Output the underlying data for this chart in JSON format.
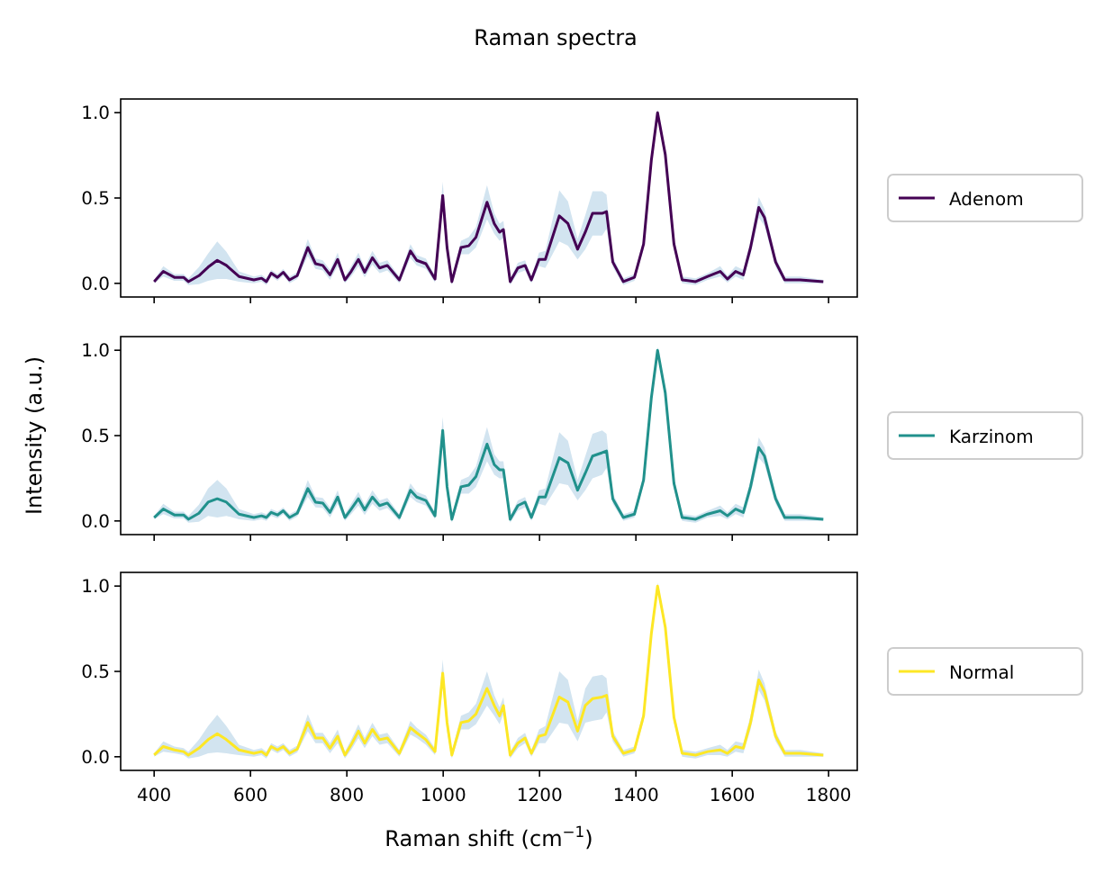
{
  "chart_data": [
    {
      "type": "line",
      "title": "Raman spectra",
      "legend": "right",
      "tick_labels": "y",
      "xlim": [
        330.5,
        1859.5
      ],
      "ylim": [
        -0.08,
        1.08
      ],
      "yticks": [
        {
          "value": 0,
          "label": "0.0"
        },
        {
          "value": 0.5,
          "label": "0.5"
        },
        {
          "value": 1,
          "label": "1.0"
        }
      ],
      "xticks": [
        400,
        600,
        800,
        1000,
        1200,
        1400,
        1600,
        1800
      ],
      "x": [
        400,
        419,
        442,
        461,
        471,
        493,
        512,
        531,
        550,
        576,
        607,
        623,
        633,
        643,
        656,
        668,
        681,
        697,
        719,
        735,
        750,
        765,
        781,
        796,
        809,
        824,
        837,
        853,
        868,
        884,
        909,
        932,
        945,
        964,
        983,
        999,
        1008,
        1018,
        1027,
        1037,
        1053,
        1068,
        1091,
        1106,
        1117,
        1125,
        1139,
        1155,
        1170,
        1183,
        1199,
        1212,
        1241,
        1259,
        1279,
        1295,
        1310,
        1330,
        1339,
        1352,
        1374,
        1397,
        1416,
        1432,
        1445,
        1461,
        1479,
        1496,
        1524,
        1549,
        1575,
        1590,
        1607,
        1623,
        1638,
        1655,
        1667,
        1690,
        1709,
        1741,
        1789
      ],
      "series": [
        {
          "name": "Adenom",
          "color": "#440154",
          "values": [
            0.01,
            0.07,
            0.035,
            0.035,
            0.01,
            0.045,
            0.095,
            0.135,
            0.105,
            0.04,
            0.02,
            0.03,
            0.01,
            0.06,
            0.035,
            0.065,
            0.02,
            0.045,
            0.21,
            0.115,
            0.105,
            0.05,
            0.14,
            0.02,
            0.07,
            0.14,
            0.065,
            0.15,
            0.09,
            0.105,
            0.02,
            0.19,
            0.135,
            0.115,
            0.025,
            0.515,
            0.21,
            0.01,
            0.105,
            0.21,
            0.22,
            0.27,
            0.475,
            0.35,
            0.3,
            0.315,
            0.01,
            0.09,
            0.105,
            0.02,
            0.14,
            0.14,
            0.395,
            0.35,
            0.2,
            0.3,
            0.41,
            0.41,
            0.42,
            0.125,
            0.01,
            0.035,
            0.23,
            0.72,
            1.0,
            0.755,
            0.23,
            0.02,
            0.01,
            0.04,
            0.07,
            0.025,
            0.07,
            0.05,
            0.21,
            0.445,
            0.385,
            0.125,
            0.02,
            0.02,
            0.01
          ],
          "lower": [
            0.0,
            0.04,
            0.015,
            0.015,
            -0.01,
            -0.005,
            0.015,
            0.025,
            0.025,
            0.01,
            0.0,
            0.01,
            -0.01,
            0.04,
            0.015,
            0.045,
            0.0,
            0.025,
            0.16,
            0.085,
            0.075,
            0.02,
            0.1,
            0.0,
            0.04,
            0.1,
            0.035,
            0.11,
            0.06,
            0.075,
            0.0,
            0.15,
            0.105,
            0.085,
            0.005,
            0.435,
            0.16,
            -0.01,
            0.075,
            0.17,
            0.17,
            0.21,
            0.375,
            0.29,
            0.25,
            0.265,
            -0.01,
            0.06,
            0.075,
            0.0,
            0.1,
            0.09,
            0.245,
            0.22,
            0.14,
            0.2,
            0.28,
            0.28,
            0.32,
            0.095,
            -0.01,
            0.015,
            0.2,
            0.69,
            0.98,
            0.725,
            0.2,
            0.0,
            -0.01,
            0.02,
            0.04,
            0.005,
            0.04,
            0.02,
            0.17,
            0.385,
            0.335,
            0.095,
            0.0,
            0.0,
            0.0
          ],
          "upper": [
            0.02,
            0.1,
            0.055,
            0.055,
            0.03,
            0.095,
            0.175,
            0.245,
            0.185,
            0.07,
            0.04,
            0.05,
            0.03,
            0.08,
            0.055,
            0.085,
            0.04,
            0.065,
            0.26,
            0.145,
            0.135,
            0.08,
            0.18,
            0.04,
            0.1,
            0.18,
            0.095,
            0.19,
            0.12,
            0.135,
            0.04,
            0.23,
            0.165,
            0.145,
            0.045,
            0.595,
            0.26,
            0.03,
            0.135,
            0.25,
            0.27,
            0.33,
            0.575,
            0.41,
            0.35,
            0.365,
            0.03,
            0.12,
            0.135,
            0.04,
            0.18,
            0.19,
            0.545,
            0.48,
            0.26,
            0.4,
            0.54,
            0.54,
            0.52,
            0.155,
            0.03,
            0.055,
            0.26,
            0.75,
            1.02,
            0.785,
            0.26,
            0.04,
            0.03,
            0.06,
            0.1,
            0.045,
            0.1,
            0.08,
            0.25,
            0.505,
            0.435,
            0.155,
            0.04,
            0.04,
            0.02
          ]
        }
      ]
    },
    {
      "type": "line",
      "ylabel": "Intensity (a.u.)",
      "legend": "right",
      "tick_labels": "y",
      "xlim": [
        330.5,
        1859.5
      ],
      "ylim": [
        -0.08,
        1.08
      ],
      "yticks": [
        {
          "value": 0,
          "label": "0.0"
        },
        {
          "value": 0.5,
          "label": "0.5"
        },
        {
          "value": 1,
          "label": "1.0"
        }
      ],
      "xticks": [
        400,
        600,
        800,
        1000,
        1200,
        1400,
        1600,
        1800
      ],
      "x": [
        400,
        419,
        442,
        461,
        471,
        493,
        512,
        531,
        550,
        576,
        607,
        623,
        633,
        643,
        656,
        668,
        681,
        697,
        719,
        735,
        750,
        765,
        781,
        796,
        809,
        824,
        837,
        853,
        868,
        884,
        909,
        932,
        945,
        964,
        983,
        999,
        1008,
        1018,
        1027,
        1037,
        1053,
        1068,
        1091,
        1106,
        1117,
        1125,
        1139,
        1155,
        1170,
        1183,
        1199,
        1212,
        1241,
        1259,
        1279,
        1295,
        1310,
        1330,
        1339,
        1352,
        1374,
        1397,
        1416,
        1432,
        1445,
        1461,
        1479,
        1496,
        1524,
        1549,
        1575,
        1590,
        1607,
        1623,
        1638,
        1655,
        1667,
        1690,
        1709,
        1741,
        1789
      ],
      "series": [
        {
          "name": "Karzinom",
          "color": "#21918c",
          "values": [
            0.02,
            0.07,
            0.035,
            0.035,
            0.01,
            0.045,
            0.11,
            0.13,
            0.11,
            0.04,
            0.02,
            0.03,
            0.02,
            0.05,
            0.035,
            0.06,
            0.02,
            0.045,
            0.19,
            0.11,
            0.105,
            0.05,
            0.14,
            0.02,
            0.07,
            0.13,
            0.065,
            0.14,
            0.09,
            0.105,
            0.02,
            0.18,
            0.14,
            0.12,
            0.03,
            0.53,
            0.2,
            0.01,
            0.1,
            0.2,
            0.21,
            0.26,
            0.45,
            0.33,
            0.3,
            0.3,
            0.01,
            0.09,
            0.11,
            0.02,
            0.14,
            0.14,
            0.37,
            0.34,
            0.18,
            0.28,
            0.38,
            0.4,
            0.41,
            0.13,
            0.02,
            0.04,
            0.24,
            0.72,
            1.0,
            0.75,
            0.22,
            0.02,
            0.01,
            0.04,
            0.06,
            0.03,
            0.07,
            0.05,
            0.2,
            0.43,
            0.38,
            0.13,
            0.02,
            0.02,
            0.01
          ],
          "lower": [
            0.01,
            0.04,
            0.015,
            0.015,
            -0.01,
            -0.005,
            0.03,
            0.02,
            0.03,
            0.01,
            0.0,
            0.01,
            0.0,
            0.03,
            0.015,
            0.04,
            0.0,
            0.025,
            0.14,
            0.08,
            0.075,
            0.02,
            0.1,
            0.0,
            0.04,
            0.09,
            0.035,
            0.1,
            0.06,
            0.075,
            0.0,
            0.14,
            0.11,
            0.09,
            0.01,
            0.45,
            0.15,
            -0.01,
            0.07,
            0.16,
            0.16,
            0.2,
            0.35,
            0.27,
            0.25,
            0.25,
            -0.01,
            0.06,
            0.08,
            0.0,
            0.1,
            0.09,
            0.22,
            0.21,
            0.12,
            0.18,
            0.25,
            0.27,
            0.31,
            0.1,
            0.0,
            0.02,
            0.21,
            0.69,
            0.98,
            0.72,
            0.19,
            0.0,
            -0.01,
            0.02,
            0.03,
            0.01,
            0.04,
            0.02,
            0.16,
            0.37,
            0.33,
            0.1,
            0.0,
            0.0,
            0.0
          ],
          "upper": [
            0.03,
            0.1,
            0.055,
            0.055,
            0.03,
            0.095,
            0.19,
            0.24,
            0.19,
            0.07,
            0.04,
            0.05,
            0.04,
            0.07,
            0.055,
            0.08,
            0.04,
            0.065,
            0.24,
            0.14,
            0.135,
            0.08,
            0.18,
            0.04,
            0.1,
            0.17,
            0.095,
            0.18,
            0.12,
            0.135,
            0.04,
            0.22,
            0.17,
            0.15,
            0.05,
            0.61,
            0.25,
            0.03,
            0.13,
            0.24,
            0.26,
            0.32,
            0.55,
            0.39,
            0.35,
            0.35,
            0.03,
            0.12,
            0.14,
            0.04,
            0.18,
            0.19,
            0.52,
            0.47,
            0.24,
            0.38,
            0.51,
            0.53,
            0.51,
            0.16,
            0.04,
            0.06,
            0.27,
            0.75,
            1.02,
            0.78,
            0.25,
            0.04,
            0.03,
            0.06,
            0.09,
            0.05,
            0.1,
            0.08,
            0.24,
            0.49,
            0.43,
            0.16,
            0.04,
            0.04,
            0.02
          ]
        }
      ]
    },
    {
      "type": "line",
      "xlabel": "Raman shift (cm$^{−1}$)",
      "legend": "right",
      "xlim": [
        330.5,
        1859.5
      ],
      "ylim": [
        -0.08,
        1.08
      ],
      "yticks": [
        {
          "value": 0,
          "label": "0.0"
        },
        {
          "value": 0.5,
          "label": "0.5"
        },
        {
          "value": 1,
          "label": "1.0"
        }
      ],
      "xticks": [
        400,
        600,
        800,
        1000,
        1200,
        1400,
        1600,
        1800
      ],
      "x": [
        400,
        419,
        442,
        461,
        471,
        493,
        512,
        531,
        550,
        576,
        607,
        623,
        633,
        643,
        656,
        668,
        681,
        697,
        719,
        735,
        750,
        765,
        781,
        796,
        809,
        824,
        837,
        853,
        868,
        884,
        909,
        932,
        945,
        964,
        983,
        999,
        1008,
        1018,
        1027,
        1037,
        1053,
        1068,
        1091,
        1106,
        1117,
        1125,
        1139,
        1155,
        1170,
        1183,
        1199,
        1212,
        1241,
        1259,
        1279,
        1295,
        1310,
        1330,
        1339,
        1352,
        1374,
        1397,
        1416,
        1432,
        1445,
        1461,
        1479,
        1496,
        1524,
        1549,
        1575,
        1590,
        1607,
        1623,
        1638,
        1655,
        1667,
        1690,
        1709,
        1741,
        1789
      ],
      "series": [
        {
          "name": "Normal",
          "color": "#fde725",
          "values": [
            0.01,
            0.06,
            0.04,
            0.03,
            0.01,
            0.05,
            0.1,
            0.135,
            0.1,
            0.04,
            0.02,
            0.03,
            0.01,
            0.06,
            0.04,
            0.06,
            0.02,
            0.045,
            0.2,
            0.11,
            0.11,
            0.05,
            0.12,
            0.01,
            0.07,
            0.15,
            0.08,
            0.16,
            0.1,
            0.11,
            0.02,
            0.17,
            0.14,
            0.1,
            0.03,
            0.49,
            0.2,
            0.01,
            0.1,
            0.2,
            0.21,
            0.25,
            0.4,
            0.3,
            0.24,
            0.3,
            0.01,
            0.08,
            0.11,
            0.02,
            0.12,
            0.13,
            0.35,
            0.32,
            0.15,
            0.3,
            0.34,
            0.35,
            0.36,
            0.12,
            0.02,
            0.04,
            0.24,
            0.72,
            1.0,
            0.76,
            0.23,
            0.02,
            0.01,
            0.03,
            0.04,
            0.02,
            0.06,
            0.05,
            0.2,
            0.45,
            0.38,
            0.12,
            0.02,
            0.02,
            0.01
          ],
          "lower": [
            0.0,
            0.03,
            0.02,
            0.01,
            -0.01,
            0.0,
            0.02,
            0.025,
            0.02,
            0.01,
            0.0,
            0.01,
            -0.01,
            0.04,
            0.02,
            0.04,
            0.0,
            0.025,
            0.15,
            0.08,
            0.08,
            0.02,
            0.08,
            -0.01,
            0.04,
            0.11,
            0.05,
            0.12,
            0.07,
            0.08,
            0.0,
            0.13,
            0.11,
            0.07,
            0.01,
            0.41,
            0.15,
            -0.01,
            0.07,
            0.16,
            0.16,
            0.19,
            0.3,
            0.24,
            0.19,
            0.25,
            -0.01,
            0.05,
            0.08,
            0.0,
            0.08,
            0.08,
            0.2,
            0.19,
            0.09,
            0.2,
            0.21,
            0.22,
            0.26,
            0.09,
            0.0,
            0.02,
            0.21,
            0.69,
            0.98,
            0.73,
            0.2,
            0.0,
            -0.01,
            0.01,
            0.01,
            0.0,
            0.03,
            0.02,
            0.16,
            0.39,
            0.33,
            0.09,
            0.0,
            0.0,
            0.0
          ],
          "upper": [
            0.02,
            0.09,
            0.06,
            0.05,
            0.03,
            0.1,
            0.18,
            0.245,
            0.18,
            0.07,
            0.04,
            0.05,
            0.03,
            0.08,
            0.06,
            0.08,
            0.04,
            0.065,
            0.25,
            0.14,
            0.14,
            0.08,
            0.16,
            0.03,
            0.1,
            0.19,
            0.11,
            0.2,
            0.13,
            0.14,
            0.04,
            0.21,
            0.17,
            0.13,
            0.05,
            0.57,
            0.25,
            0.03,
            0.13,
            0.24,
            0.26,
            0.31,
            0.5,
            0.36,
            0.29,
            0.35,
            0.03,
            0.11,
            0.14,
            0.04,
            0.16,
            0.18,
            0.5,
            0.45,
            0.21,
            0.4,
            0.47,
            0.48,
            0.46,
            0.15,
            0.04,
            0.06,
            0.27,
            0.75,
            1.02,
            0.79,
            0.26,
            0.04,
            0.03,
            0.05,
            0.07,
            0.04,
            0.09,
            0.08,
            0.24,
            0.51,
            0.43,
            0.15,
            0.04,
            0.04,
            0.02
          ]
        }
      ]
    }
  ]
}
